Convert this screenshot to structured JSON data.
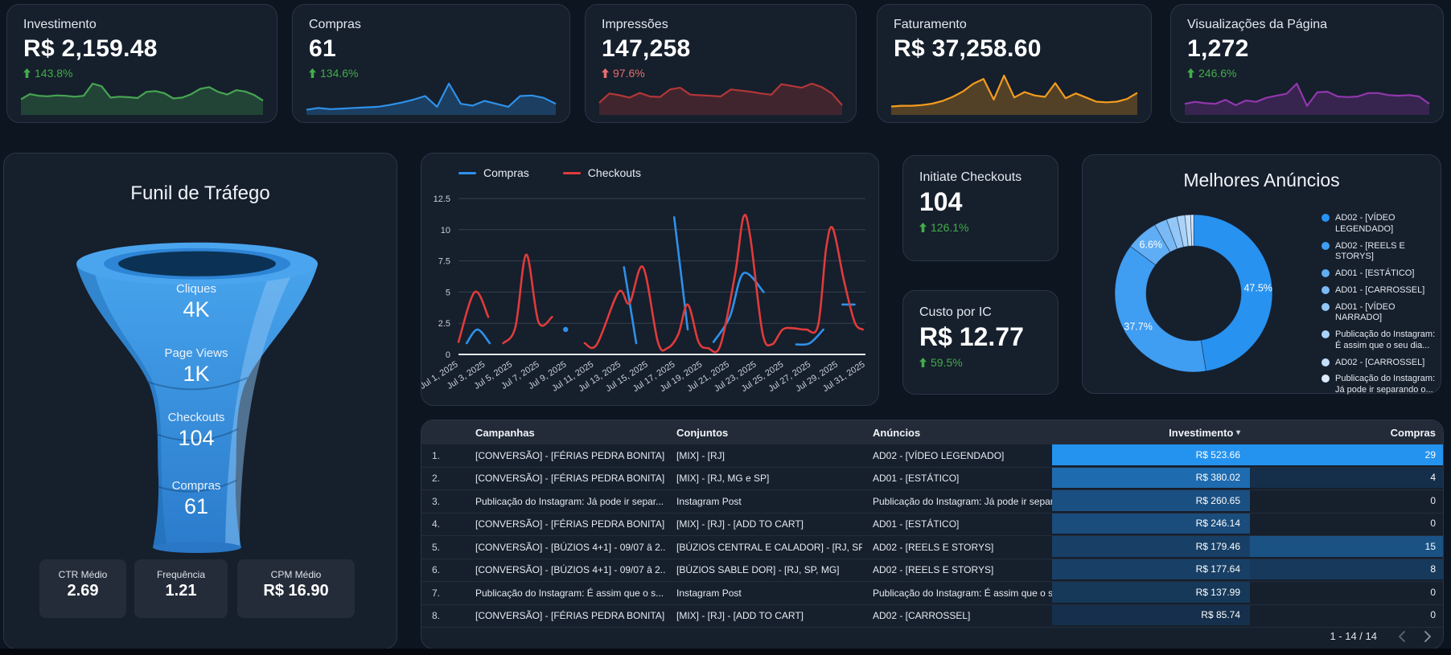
{
  "colors": {
    "positive": "#42ad4a",
    "negative": "#e76f6f",
    "accent_blue": "#2492ef",
    "card_bg": "#161f2c"
  },
  "kpis": [
    {
      "title": "Investimento",
      "value": "R$ 2,159.48",
      "delta": "143.8%",
      "direction": "up"
    },
    {
      "title": "Compras",
      "value": "61",
      "delta": "134.6%",
      "direction": "up"
    },
    {
      "title": "Impressões",
      "value": "147,258",
      "delta": "97.6%",
      "direction": "up"
    },
    {
      "title": "Faturamento",
      "value": "R$ 37,258.60"
    },
    {
      "title": "Visualizações da Página",
      "value": "1,272",
      "delta": "246.6%",
      "direction": "up"
    }
  ],
  "funnel_panel": {
    "title": "Funil de Tráfego",
    "metrics": [
      {
        "label": "CTR Médio",
        "value": "2.69"
      },
      {
        "label": "Frequência",
        "value": "1.21"
      },
      {
        "label": "CPM Médio",
        "value": "R$ 16.90"
      }
    ]
  },
  "side_cards": [
    {
      "title": "Initiate Checkouts",
      "value": "104",
      "delta": "126.1%",
      "direction": "up"
    },
    {
      "title": "Custo por IC",
      "value": "R$ 12.77",
      "delta": "59.5%",
      "direction": "up"
    }
  ],
  "chart_data": [
    {
      "id": "kpi-sparklines",
      "type": "area",
      "title": "KPI sparklines (shapes estimated, no axes shown)",
      "series": [
        {
          "name": "Investimento",
          "color": "#46a552",
          "values": [
            3.2,
            4.4,
            4,
            3.9,
            4.1,
            4,
            3.8,
            4,
            6.8,
            6.2,
            3.6,
            3.8,
            3.7,
            3.5,
            4.9,
            5.1,
            4.6,
            3.4,
            3.6,
            4.4,
            5.6,
            6,
            4.9,
            4.3,
            5.3,
            5,
            4.2,
            2.9
          ]
        },
        {
          "name": "Compras",
          "color": "#2e91e9",
          "values": [
            0.6,
            0.9,
            0.7,
            0.8,
            0.9,
            1,
            1.1,
            1.4,
            1.8,
            2.3,
            2.9,
            1.1,
            5,
            1.6,
            1.3,
            2.1,
            1.6,
            1.1,
            2.9,
            3,
            2.6,
            1.6
          ]
        },
        {
          "name": "Impressões",
          "color": "#b23737",
          "values": [
            1.8,
            3.4,
            3.1,
            2.7,
            3.5,
            2.9,
            2.8,
            4.1,
            4.4,
            3.2,
            3.1,
            3,
            2.9,
            4.1,
            3.9,
            3.7,
            3.4,
            3.2,
            5,
            4.7,
            4.4,
            5.1,
            4.5,
            3.4,
            1.4
          ]
        },
        {
          "name": "Faturamento",
          "color": "#f39c1d",
          "values": [
            1,
            1.1,
            1.1,
            1.2,
            1.4,
            1.8,
            2.4,
            3.2,
            4.3,
            5,
            2,
            5.5,
            2.3,
            3.1,
            2.6,
            2.4,
            4.4,
            2.2,
            2.9,
            2.3,
            1.7,
            1.6,
            1.7,
            2.1,
            3
          ]
        },
        {
          "name": "Visualizações da Página",
          "color": "#9137ad",
          "values": [
            1.4,
            1.7,
            1.5,
            1.4,
            2,
            1.2,
            1.9,
            1.7,
            2.3,
            2.6,
            2.9,
            4.4,
            1.1,
            3.1,
            3.2,
            2.5,
            2.4,
            2.5,
            3,
            3,
            2.7,
            2.6,
            2.7,
            2.5,
            1.4
          ]
        }
      ]
    },
    {
      "id": "traffic-funnel",
      "type": "funnel",
      "title": "Funil de Tráfego",
      "categories": [
        "Cliques",
        "Page Views",
        "Checkouts",
        "Compras"
      ],
      "values": [
        4000,
        1000,
        104,
        61
      ],
      "display_values": [
        "4K",
        "1K",
        "104",
        "61"
      ]
    },
    {
      "id": "daily-lines",
      "type": "line",
      "title": "",
      "ylim": [
        0,
        12.5
      ],
      "y_ticks": [
        "0",
        "2.5",
        "5",
        "7.5",
        "10",
        "12.5"
      ],
      "x_range": [
        1,
        31
      ],
      "grid": true,
      "legend_position": "top-left",
      "x_tick_labels": [
        "Jul 1, 2025",
        "Jul 3, 2025",
        "Jul 5, 2025",
        "Jul 7, 2025",
        "Jul 9, 2025",
        "Jul 11, 2025",
        "Jul 13, 2025",
        "Jul 15, 2025",
        "Jul 17, 2025",
        "Jul 19, 2025",
        "Jul 21, 2025",
        "Jul 23, 2025",
        "Jul 25, 2025",
        "Jul 27, 2025",
        "Jul 29, 2025",
        "Jul 31, 2025"
      ],
      "series": [
        {
          "name": "Compras",
          "color": "#2e91e9",
          "runs": [
            [
              [
                1.6,
                0.9
              ],
              [
                2.4,
                2
              ],
              [
                3.3,
                0.9
              ]
            ],
            [
              [
                8.9,
                2
              ]
            ],
            [
              [
                13.2,
                7
              ],
              [
                14.1,
                0.9
              ]
            ],
            [
              [
                16.9,
                11
              ],
              [
                17.9,
                2
              ]
            ],
            [
              [
                19.8,
                1
              ],
              [
                21,
                3
              ],
              [
                22,
                6.5
              ],
              [
                23.5,
                5
              ]
            ],
            [
              [
                25.9,
                0.8
              ],
              [
                26.9,
                0.9
              ],
              [
                27.9,
                2
              ]
            ],
            [
              [
                29.3,
                4
              ],
              [
                30.2,
                4
              ]
            ]
          ]
        },
        {
          "name": "Checkouts",
          "color": "#e03b3b",
          "runs": [
            [
              [
                1,
                1
              ],
              [
                2.2,
                5
              ],
              [
                3.2,
                3
              ]
            ],
            [
              [
                4.3,
                0.9
              ],
              [
                5.2,
                2.2
              ],
              [
                6,
                8
              ],
              [
                6.9,
                2.6
              ],
              [
                7.9,
                3
              ]
            ],
            [
              [
                10.3,
                0.9
              ],
              [
                11.2,
                0.8
              ],
              [
                12.8,
                5
              ],
              [
                13.6,
                4.1
              ],
              [
                14.6,
                7
              ],
              [
                15.7,
                1
              ],
              [
                16.4,
                0.5
              ],
              [
                17.2,
                1.6
              ],
              [
                17.9,
                4
              ],
              [
                18.7,
                1
              ],
              [
                19.4,
                0.5
              ],
              [
                20.3,
                0.7
              ],
              [
                21.4,
                6.5
              ],
              [
                22,
                11
              ],
              [
                22.5,
                9.5
              ],
              [
                23.4,
                1.8
              ],
              [
                24.1,
                0.8
              ],
              [
                24.9,
                2
              ],
              [
                25.7,
                2.1
              ],
              [
                26.6,
                2
              ],
              [
                27.5,
                2.3
              ],
              [
                28.1,
                8.5
              ],
              [
                28.6,
                10.1
              ],
              [
                29.4,
                6
              ],
              [
                30.2,
                2.6
              ],
              [
                30.8,
                2
              ]
            ]
          ]
        }
      ]
    },
    {
      "id": "best-ads",
      "type": "pie",
      "donut": true,
      "title": "Melhores Anúncios",
      "labels": [
        "AD02 - [VÍDEO LEGENDADO]",
        "AD02 - [REELS E STORYS]",
        "AD01 - [ESTÁTICO]",
        "AD01 - [CARROSSEL]",
        "AD01 - [VÍDEO NARRADO]",
        "Publicação do Instagram: É assim que o seu dia...",
        "AD02 - [CARROSSEL]",
        "Publicação do Instagram: Já pode ir separando o..."
      ],
      "values_pct": [
        47.5,
        37.7,
        6.6,
        2.6,
        2.2,
        1.6,
        1.2,
        0.6
      ],
      "colors": [
        "#2892f0",
        "#3f9df2",
        "#5fadf4",
        "#79baf6",
        "#92c7f8",
        "#abd3fa",
        "#c3dffb",
        "#dcebfd"
      ],
      "label_threshold_pct": 5
    },
    {
      "id": "campaign-table",
      "type": "table",
      "columns": [
        "",
        "Campanhas",
        "Conjuntos",
        "Anúncios",
        "Investimento",
        "Compras"
      ],
      "sort": {
        "column": "Investimento",
        "direction": "desc",
        "indicator": "▾"
      },
      "rows": [
        {
          "n": "1.",
          "campanhas": "[CONVERSÃO] - [FÉRIAS PEDRA BONITA] - ...",
          "conjuntos": "[MIX] - [RJ]",
          "anuncios": "AD02 - [VÍDEO LEGENDADO]",
          "investimento": "R$ 523.66",
          "investimento_num": 523.66,
          "compras": 29
        },
        {
          "n": "2.",
          "campanhas": "[CONVERSÃO] - [FÉRIAS PEDRA BONITA] - ...",
          "conjuntos": "[MIX] - [RJ, MG e SP]",
          "anuncios": "AD01 - [ESTÁTICO]",
          "investimento": "R$ 380.02",
          "investimento_num": 380.02,
          "compras": 4
        },
        {
          "n": "3.",
          "campanhas": "Publicação do Instagram: Já pode ir separ...",
          "conjuntos": "Instagram Post",
          "anuncios": "Publicação do Instagram: Já pode ir separ...",
          "investimento": "R$ 260.65",
          "investimento_num": 260.65,
          "compras": 0
        },
        {
          "n": "4.",
          "campanhas": "[CONVERSÃO] - [FÉRIAS PEDRA BONITA] - ...",
          "conjuntos": "[MIX] - [RJ] - [ADD TO CART]",
          "anuncios": "AD01 - [ESTÁTICO]",
          "investimento": "R$ 246.14",
          "investimento_num": 246.14,
          "compras": 0
        },
        {
          "n": "5.",
          "campanhas": "[CONVERSÃO] - [BÚZIOS 4+1] - 09/07 â 2...",
          "conjuntos": "[BÚZIOS CENTRAL E CALADOR] - [RJ, SP, M...",
          "anuncios": "AD02 - [REELS E STORYS]",
          "investimento": "R$ 179.46",
          "investimento_num": 179.46,
          "compras": 15
        },
        {
          "n": "6.",
          "campanhas": "[CONVERSÃO] - [BÚZIOS 4+1] - 09/07 â 2...",
          "conjuntos": "[BÚZIOS SABLE DOR] - [RJ, SP, MG]",
          "anuncios": "AD02 - [REELS E STORYS]",
          "investimento": "R$ 177.64",
          "investimento_num": 177.64,
          "compras": 8
        },
        {
          "n": "7.",
          "campanhas": "Publicação do Instagram: É assim que o s...",
          "conjuntos": "Instagram Post",
          "anuncios": "Publicação do Instagram: É assim que o s...",
          "investimento": "R$ 137.99",
          "investimento_num": 137.99,
          "compras": 0
        },
        {
          "n": "8.",
          "campanhas": "[CONVERSÃO] - [FÉRIAS PEDRA BONITA] - ...",
          "conjuntos": "[MIX] - [RJ] - [ADD TO CART]",
          "anuncios": "AD02 - [CARROSSEL]",
          "investimento": "R$ 85.74",
          "investimento_num": 85.74,
          "compras": 0
        }
      ],
      "pagination": "1 - 14 / 14"
    }
  ]
}
